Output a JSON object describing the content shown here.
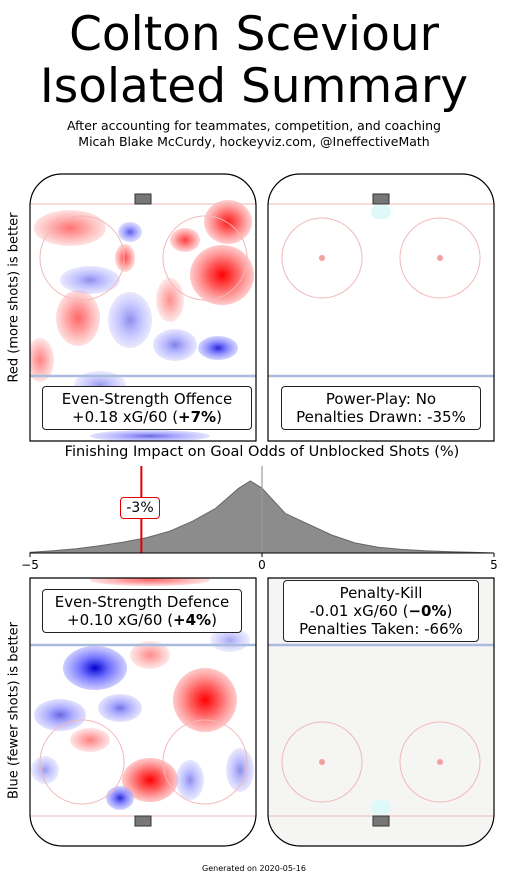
{
  "title_line1": "Colton Sceviour",
  "title_line2": "Isolated Summary",
  "subtitle_line1": "After accounting for teammates, competition, and coaching",
  "subtitle_line2": "Micah Blake McCurdy, hockeyviz.com, @IneffectiveMath",
  "offence_axis_label": "Red (more shots) is better",
  "defence_axis_label": "Blue (fewer shots) is better",
  "es_offence": {
    "label": "Even-Strength Offence",
    "value": "+0.18 xG/60 (",
    "pct": "+7%",
    "close": ")"
  },
  "power_play": {
    "line1": "Power-Play: No",
    "line2": "Penalties Drawn: -35%"
  },
  "es_defence": {
    "label": "Even-Strength Defence",
    "value": "+0.10 xG/60 (",
    "pct": "+4%",
    "close": ")"
  },
  "penalty_kill": {
    "line1": "Penalty-Kill",
    "value": "-0.01 xG/60 (",
    "pct": "−0%",
    "close": ")",
    "line3": "Penalties Taken: -66%"
  },
  "footer": "Generated on 2020-05-16",
  "chart_data": {
    "type": "area",
    "title": "Finishing Impact on Goal Odds of Unblocked Shots (%)",
    "xlim": [
      -5,
      5
    ],
    "xticks": [
      "−5",
      "0",
      "5"
    ],
    "x": [
      -5,
      -4.5,
      -4,
      -3.5,
      -3,
      -2.5,
      -2,
      -1.5,
      -1,
      -0.5,
      -0.25,
      0,
      0.5,
      1,
      1.5,
      2,
      2.5,
      3,
      3.5,
      4,
      4.5,
      5
    ],
    "density": [
      0.01,
      0.03,
      0.06,
      0.1,
      0.15,
      0.21,
      0.3,
      0.44,
      0.62,
      0.9,
      1.0,
      0.9,
      0.55,
      0.4,
      0.25,
      0.14,
      0.08,
      0.05,
      0.03,
      0.02,
      0.01,
      0.0
    ],
    "marker_value": -2.6,
    "marker_label": "-3%",
    "reference_line": 0,
    "colors": {
      "fill": "#8c8c8c",
      "marker": "#e00000",
      "reference": "#999999"
    }
  }
}
